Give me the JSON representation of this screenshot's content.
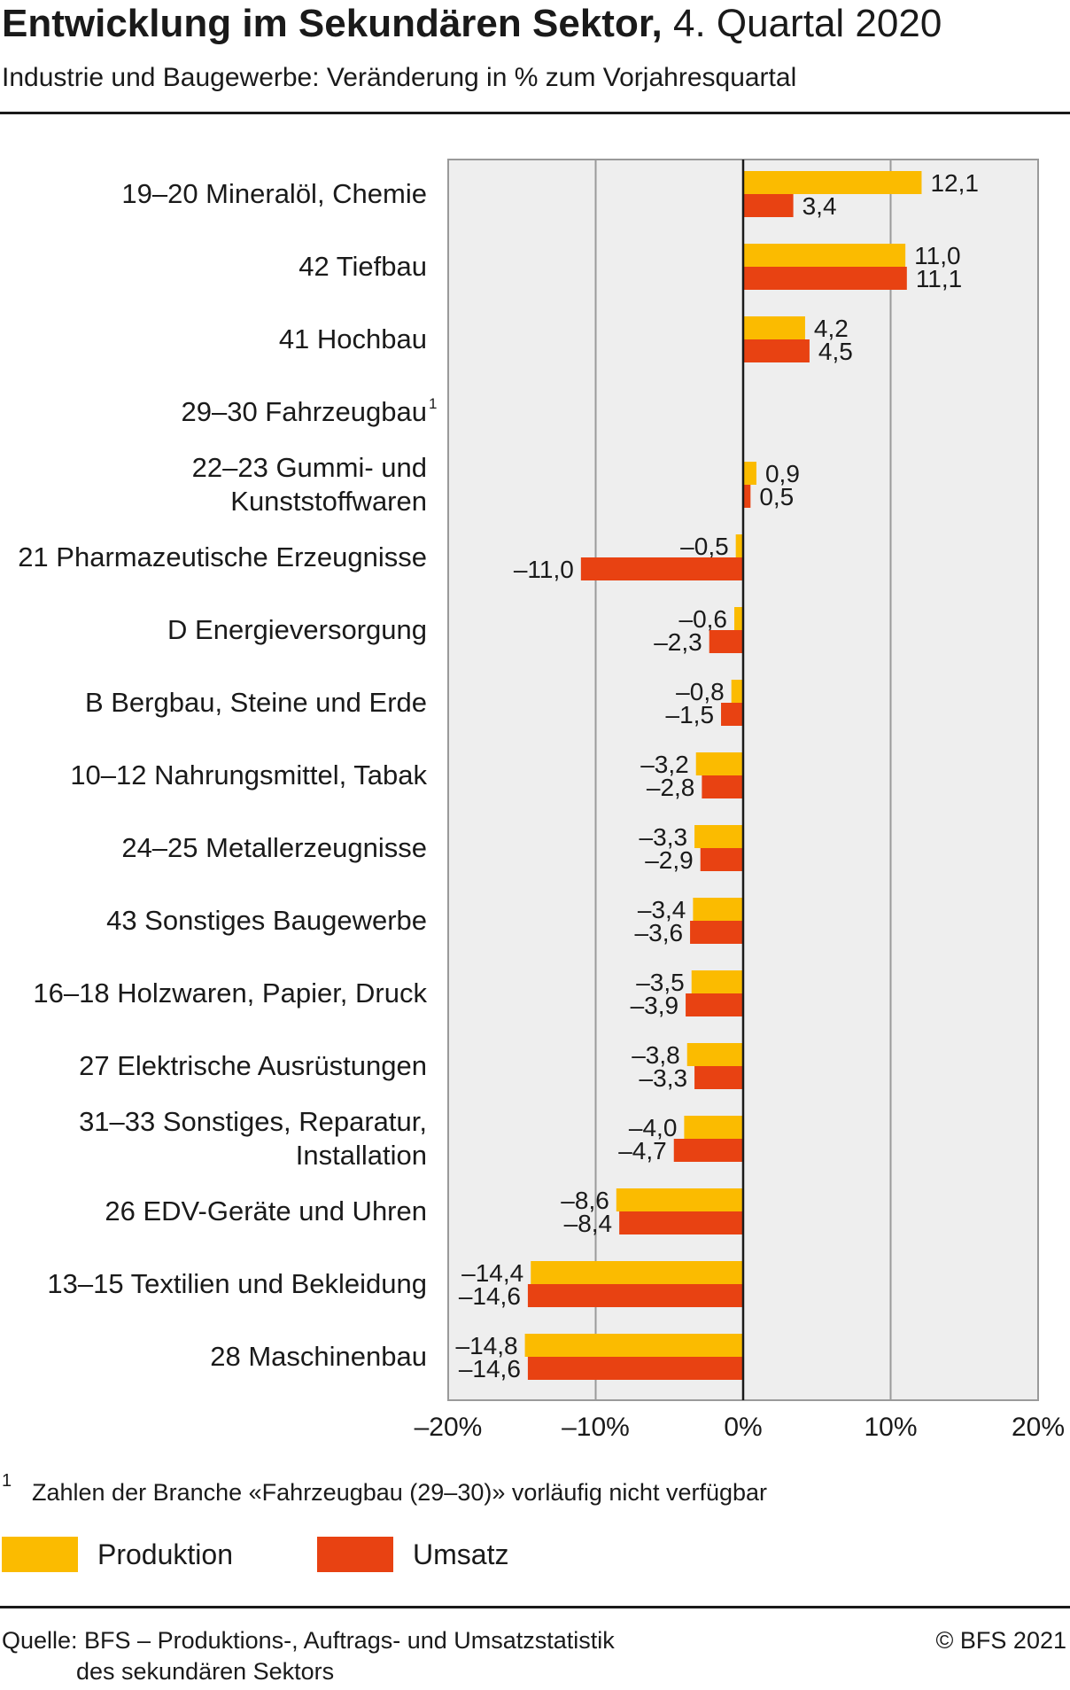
{
  "header": {
    "title_bold": "Entwicklung im Sekundären Sektor,",
    "title_rest": " 4. Quartal 2020",
    "subtitle": "Industrie und Baugewerbe: Veränderung in % zum Vorjahresquartal"
  },
  "chart_data": {
    "type": "bar",
    "orientation": "horizontal",
    "xlim": [
      -20,
      20
    ],
    "x_ticks": [
      -20,
      -10,
      0,
      10,
      20
    ],
    "x_tick_labels": [
      "–20%",
      "–10%",
      "0%",
      "10%",
      "20%"
    ],
    "grid": true,
    "categories": [
      "19–20 Mineralöl, Chemie",
      "42 Tiefbau",
      "41 Hochbau",
      "29–30 Fahrzeugbau",
      "22–23  Gummi- und\nKunststoffwaren",
      "21 Pharmazeutische Erzeugnisse",
      "D Energieversorgung",
      "B Bergbau, Steine und Erde",
      "10–12 Nahrungsmittel, Tabak",
      "24–25 Metallerzeugnisse",
      "43 Sonstiges Baugewerbe",
      "16–18 Holzwaren, Papier, Druck",
      "27  Elektrische Ausrüstungen",
      "31–33 Sonstiges, Reparatur,\nInstallation",
      "26  EDV-Geräte und Uhren",
      "13–15 Textilien und Bekleidung",
      "28 Maschinenbau"
    ],
    "category_superscripts": [
      "",
      "",
      "",
      "1",
      "",
      "",
      "",
      "",
      "",
      "",
      "",
      "",
      "",
      "",
      "",
      "",
      ""
    ],
    "series": [
      {
        "name": "Produktion",
        "color": "#FBBB00",
        "values": [
          12.1,
          11.0,
          4.2,
          null,
          0.9,
          -0.5,
          -0.6,
          -0.8,
          -3.2,
          -3.3,
          -3.4,
          -3.5,
          -3.8,
          -4.0,
          -8.6,
          -14.4,
          -14.8
        ],
        "labels": [
          "12,1",
          "11,0",
          "4,2",
          "",
          "0,9",
          "–0,5",
          "–0,6",
          "–0,8",
          "–3,2",
          "–3,3",
          "–3,4",
          "–3,5",
          "–3,8",
          "–4,0",
          "–8,6",
          "–14,4",
          "–14,8"
        ]
      },
      {
        "name": "Umsatz",
        "color": "#E84212",
        "values": [
          3.4,
          11.1,
          4.5,
          null,
          0.5,
          -11.0,
          -2.3,
          -1.5,
          -2.8,
          -2.9,
          -3.6,
          -3.9,
          -3.3,
          -4.7,
          -8.4,
          -14.6,
          -14.6
        ],
        "labels": [
          "3,4",
          "11,1",
          "4,5",
          "",
          "0,5",
          "–11,0",
          "–2,3",
          "–1,5",
          "–2,8",
          "–2,9",
          "–3,6",
          "–3,9",
          "–3,3",
          "–4,7",
          "–8,4",
          "–14,6",
          "–14,6"
        ]
      }
    ]
  },
  "footnote": {
    "marker": "1",
    "text": "Zahlen der Branche «Fahrzeugbau (29–30)» vorläufig nicht verfügbar"
  },
  "legend": {
    "items": [
      {
        "label": "Produktion",
        "color": "#FBBB00"
      },
      {
        "label": "Umsatz",
        "color": "#E84212"
      }
    ]
  },
  "source": {
    "line1": "Quelle: BFS – Produktions-, Auftrags- und Umsatzstatistik",
    "line2": "des sekundären Sektors"
  },
  "copyright": "© BFS 2021"
}
